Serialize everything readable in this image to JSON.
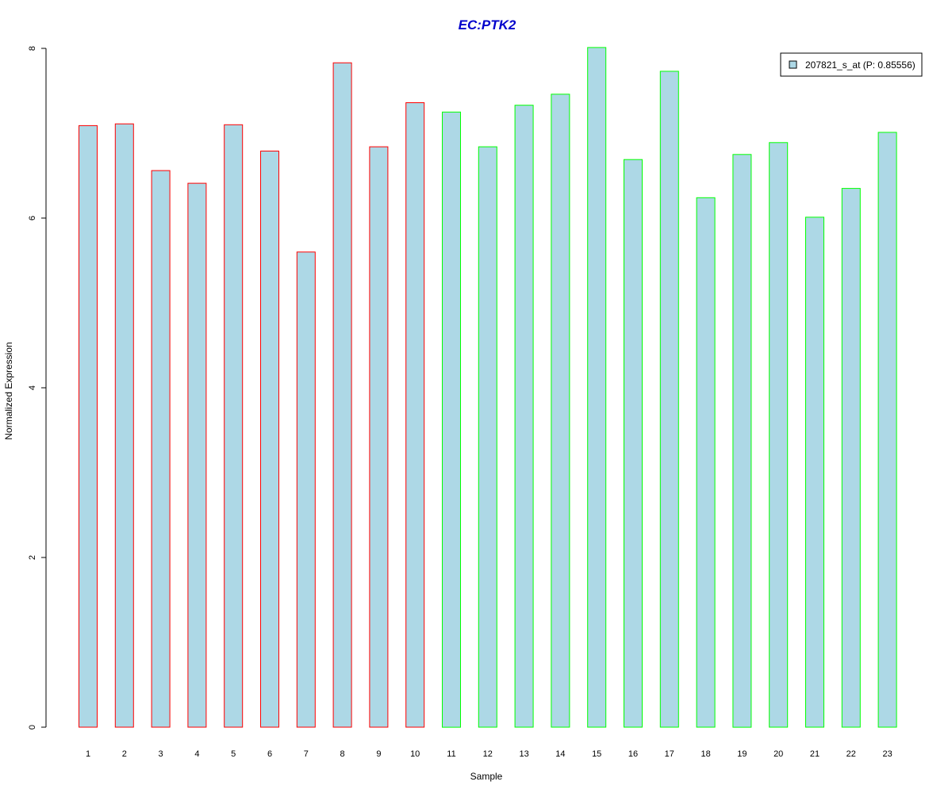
{
  "chart_data": {
    "type": "bar",
    "title": "EC:PTK2",
    "xlabel": "Sample",
    "ylabel": "Normalized Expression",
    "ylim": [
      0,
      8
    ],
    "yticks": [
      "0",
      "2",
      "4",
      "6",
      "8"
    ],
    "categories": [
      "1",
      "2",
      "3",
      "4",
      "5",
      "6",
      "7",
      "8",
      "9",
      "10",
      "11",
      "12",
      "13",
      "14",
      "15",
      "16",
      "17",
      "18",
      "19",
      "20",
      "21",
      "22",
      "23"
    ],
    "series": [
      {
        "name": "207821_s_at (P: 0.85556)",
        "values": [
          7.09,
          7.11,
          6.56,
          6.41,
          7.1,
          6.79,
          5.6,
          7.83,
          6.84,
          7.36,
          7.25,
          6.84,
          7.33,
          7.46,
          8.01,
          6.69,
          7.73,
          6.24,
          6.75,
          6.89,
          6.01,
          6.35,
          7.01
        ]
      }
    ],
    "groups": [
      "red",
      "red",
      "red",
      "red",
      "red",
      "red",
      "red",
      "red",
      "red",
      "red",
      "green",
      "green",
      "green",
      "green",
      "green",
      "green",
      "green",
      "green",
      "green",
      "green",
      "green",
      "green",
      "green"
    ],
    "legend_position": "top-right",
    "grid": false
  },
  "colors": {
    "title": "#0000cc",
    "bar_fill": "#add8e6",
    "border_red": "#ff0000",
    "border_green": "#00ff00",
    "axis": "#000000"
  }
}
